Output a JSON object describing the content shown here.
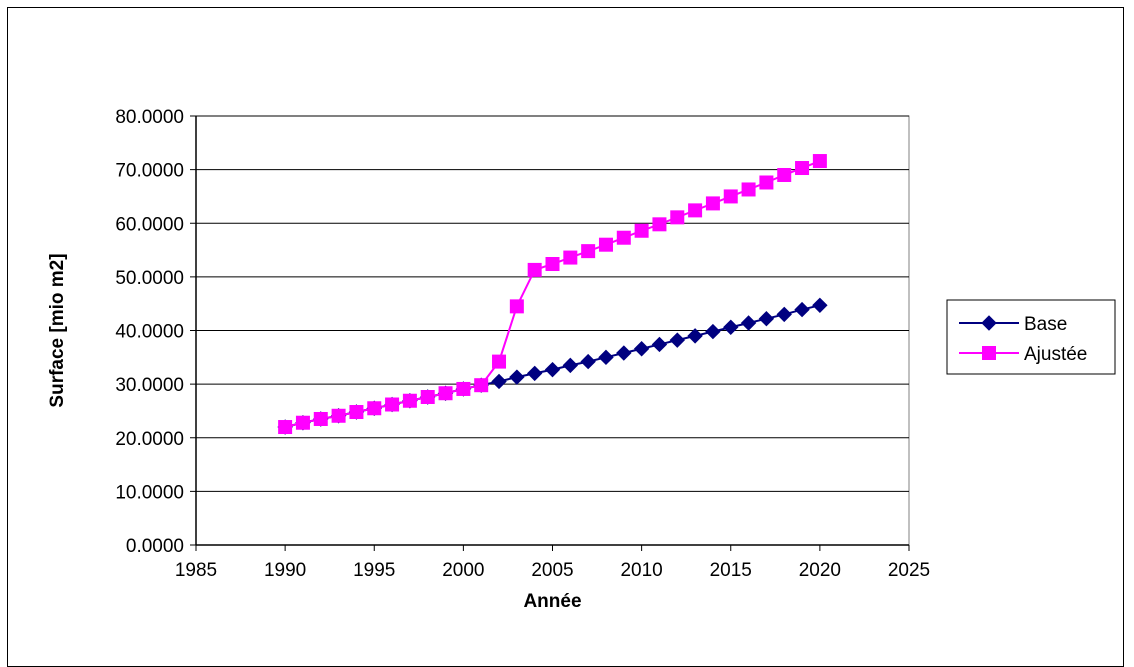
{
  "chart_data": {
    "type": "line",
    "title": "",
    "xlabel": "Année",
    "ylabel": "Surface [mio m2]",
    "xlim": [
      1985,
      2025
    ],
    "ylim": [
      0,
      80
    ],
    "xticks": [
      1985,
      1990,
      1995,
      2000,
      2005,
      2010,
      2015,
      2020,
      2025
    ],
    "yticks": [
      0,
      10,
      20,
      30,
      40,
      50,
      60,
      70,
      80
    ],
    "ytick_labels": [
      "0.0000",
      "10.0000",
      "20.0000",
      "30.0000",
      "40.0000",
      "50.0000",
      "60.0000",
      "70.0000",
      "80.0000"
    ],
    "grid": "horizontal",
    "legend_position": "right",
    "series": [
      {
        "name": "Base",
        "color": "#000080",
        "marker": "diamond",
        "x": [
          1990,
          1991,
          1992,
          1993,
          1994,
          1995,
          1996,
          1997,
          1998,
          1999,
          2000,
          2001,
          2002,
          2003,
          2004,
          2005,
          2006,
          2007,
          2008,
          2009,
          2010,
          2011,
          2012,
          2013,
          2014,
          2015,
          2016,
          2017,
          2018,
          2019,
          2020
        ],
        "y": [
          22.0,
          22.8,
          23.5,
          24.1,
          24.8,
          25.5,
          26.2,
          26.9,
          27.6,
          28.3,
          29.1,
          29.8,
          30.5,
          31.3,
          32.0,
          32.7,
          33.5,
          34.2,
          35.0,
          35.8,
          36.6,
          37.4,
          38.2,
          39.0,
          39.8,
          40.6,
          41.4,
          42.2,
          43.0,
          43.9,
          44.7
        ]
      },
      {
        "name": "Ajustée",
        "color": "#ff00ff",
        "marker": "square",
        "x": [
          1990,
          1991,
          1992,
          1993,
          1994,
          1995,
          1996,
          1997,
          1998,
          1999,
          2000,
          2001,
          2002,
          2003,
          2004,
          2005,
          2006,
          2007,
          2008,
          2009,
          2010,
          2011,
          2012,
          2013,
          2014,
          2015,
          2016,
          2017,
          2018,
          2019,
          2020
        ],
        "y": [
          22.0,
          22.8,
          23.5,
          24.1,
          24.8,
          25.5,
          26.2,
          26.9,
          27.6,
          28.3,
          29.1,
          29.8,
          34.2,
          44.5,
          51.3,
          52.4,
          53.6,
          54.8,
          56.0,
          57.3,
          58.6,
          59.8,
          61.1,
          62.4,
          63.7,
          65.0,
          66.3,
          67.6,
          69.0,
          70.3,
          71.6
        ]
      }
    ]
  }
}
